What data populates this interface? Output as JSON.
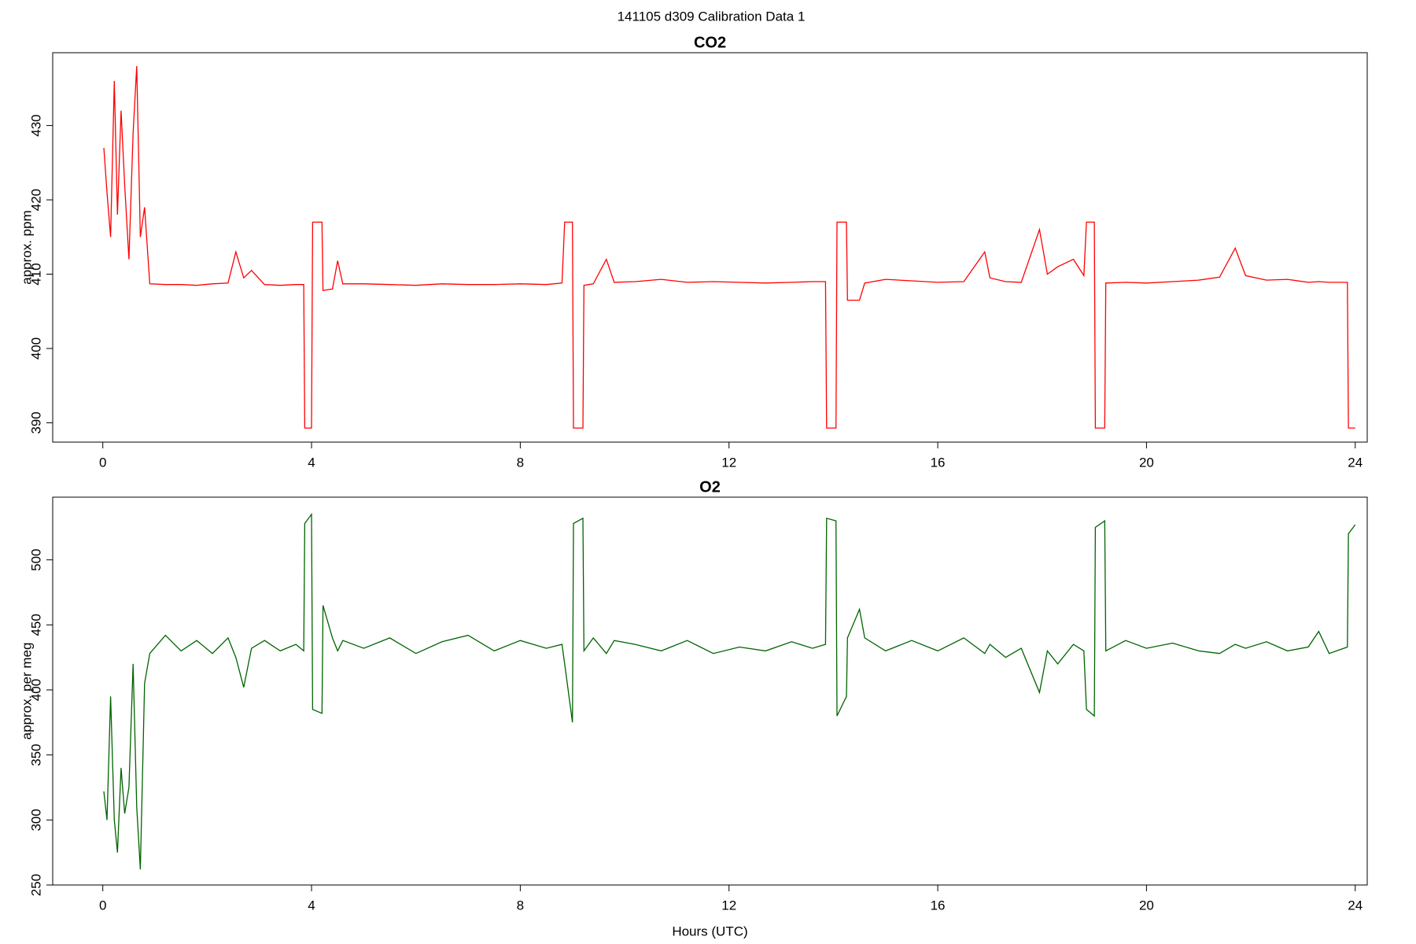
{
  "title": "141105   d309   Calibration Data 1",
  "chart_data": [
    {
      "type": "line",
      "title": "CO2",
      "ylabel": "approx. ppm",
      "x": [
        0.02,
        0.08,
        0.15,
        0.22,
        0.28,
        0.35,
        0.42,
        0.5,
        0.58,
        0.65,
        0.72,
        0.8,
        0.9,
        1.2,
        1.5,
        1.8,
        2.1,
        2.4,
        2.55,
        2.7,
        2.85,
        3.1,
        3.4,
        3.7,
        3.85,
        3.87,
        4.0,
        4.02,
        4.2,
        4.22,
        4.4,
        4.5,
        4.6,
        5.0,
        5.5,
        6.0,
        6.5,
        7.0,
        7.5,
        8.0,
        8.5,
        8.8,
        8.85,
        9.0,
        9.02,
        9.2,
        9.22,
        9.4,
        9.65,
        9.8,
        10.2,
        10.7,
        11.2,
        11.7,
        12.2,
        12.7,
        13.2,
        13.6,
        13.85,
        13.87,
        14.05,
        14.07,
        14.25,
        14.27,
        14.5,
        14.6,
        15.0,
        15.5,
        16.0,
        16.5,
        16.9,
        17.0,
        17.3,
        17.6,
        17.95,
        18.1,
        18.3,
        18.6,
        18.8,
        18.85,
        19.0,
        19.02,
        19.2,
        19.22,
        19.6,
        20.0,
        20.5,
        21.0,
        21.4,
        21.7,
        21.9,
        22.3,
        22.7,
        23.1,
        23.3,
        23.5,
        23.85,
        23.87,
        24.0
      ],
      "series": [
        {
          "name": "CO2",
          "color": "#ff0000",
          "values": [
            427,
            421,
            415,
            436,
            418,
            432,
            422,
            412,
            429,
            438,
            415,
            419,
            408.7,
            408.6,
            408.6,
            408.5,
            408.7,
            408.8,
            413,
            409.5,
            410.5,
            408.6,
            408.5,
            408.6,
            408.6,
            389.3,
            389.3,
            417,
            417,
            407.8,
            408,
            411.8,
            408.7,
            408.7,
            408.6,
            408.5,
            408.7,
            408.6,
            408.6,
            408.7,
            408.6,
            408.8,
            417,
            417,
            389.3,
            389.3,
            408.5,
            408.7,
            412,
            408.9,
            409,
            409.3,
            408.9,
            409,
            408.9,
            408.8,
            408.9,
            409,
            409,
            389.3,
            389.3,
            417,
            417,
            406.5,
            406.5,
            408.8,
            409.3,
            409.1,
            408.9,
            409,
            413,
            409.5,
            409,
            408.9,
            416,
            410,
            411,
            412,
            409.8,
            417,
            417,
            389.3,
            389.3,
            408.8,
            408.9,
            408.8,
            409,
            409.2,
            409.6,
            413.5,
            409.8,
            409.2,
            409.3,
            408.9,
            409,
            408.9,
            408.9,
            389.3,
            389.3
          ]
        }
      ],
      "xlim": [
        -0.96,
        24.23
      ],
      "xticks": [
        0,
        4,
        8,
        12,
        16,
        20,
        24
      ],
      "ylim": [
        387.4,
        439.8
      ],
      "yticks": [
        390,
        400,
        410,
        420,
        430
      ]
    },
    {
      "type": "line",
      "title": "O2",
      "ylabel": "approx. per meg",
      "xlabel": "Hours (UTC)",
      "x": [
        0.02,
        0.08,
        0.15,
        0.22,
        0.28,
        0.35,
        0.42,
        0.5,
        0.58,
        0.65,
        0.72,
        0.8,
        0.9,
        1.2,
        1.5,
        1.8,
        2.1,
        2.4,
        2.55,
        2.7,
        2.85,
        3.1,
        3.4,
        3.7,
        3.85,
        3.87,
        4.0,
        4.02,
        4.2,
        4.22,
        4.4,
        4.5,
        4.6,
        5.0,
        5.5,
        6.0,
        6.5,
        7.0,
        7.5,
        8.0,
        8.5,
        8.8,
        8.85,
        9.0,
        9.02,
        9.2,
        9.22,
        9.4,
        9.65,
        9.8,
        10.2,
        10.7,
        11.2,
        11.7,
        12.2,
        12.7,
        13.2,
        13.6,
        13.85,
        13.87,
        14.05,
        14.07,
        14.25,
        14.27,
        14.5,
        14.6,
        15.0,
        15.5,
        16.0,
        16.5,
        16.9,
        17.0,
        17.3,
        17.6,
        17.95,
        18.1,
        18.3,
        18.6,
        18.8,
        18.85,
        19.0,
        19.02,
        19.2,
        19.22,
        19.6,
        20.0,
        20.5,
        21.0,
        21.4,
        21.7,
        21.9,
        22.3,
        22.7,
        23.1,
        23.3,
        23.5,
        23.85,
        23.87,
        24.0
      ],
      "series": [
        {
          "name": "O2",
          "color": "#006400",
          "values": [
            322,
            300,
            395,
            300,
            275,
            340,
            305,
            325,
            420,
            310,
            262,
            405,
            428,
            442,
            430,
            438,
            428,
            440,
            425,
            402,
            432,
            438,
            430,
            435,
            430,
            528,
            535,
            385,
            382,
            465,
            440,
            430,
            438,
            432,
            440,
            428,
            437,
            442,
            430,
            438,
            432,
            435,
            420,
            375,
            528,
            532,
            430,
            440,
            428,
            438,
            435,
            430,
            438,
            428,
            433,
            430,
            437,
            432,
            435,
            532,
            530,
            380,
            395,
            440,
            462,
            440,
            430,
            438,
            430,
            440,
            428,
            435,
            425,
            432,
            398,
            430,
            420,
            435,
            430,
            385,
            380,
            525,
            530,
            430,
            438,
            432,
            436,
            430,
            428,
            435,
            432,
            437,
            430,
            433,
            445,
            428,
            433,
            520,
            527
          ]
        }
      ],
      "xlim": [
        -0.96,
        24.23
      ],
      "xticks": [
        0,
        4,
        8,
        12,
        16,
        20,
        24
      ],
      "ylim": [
        250,
        548.2
      ],
      "yticks": [
        250,
        300,
        350,
        400,
        450,
        500
      ]
    }
  ]
}
